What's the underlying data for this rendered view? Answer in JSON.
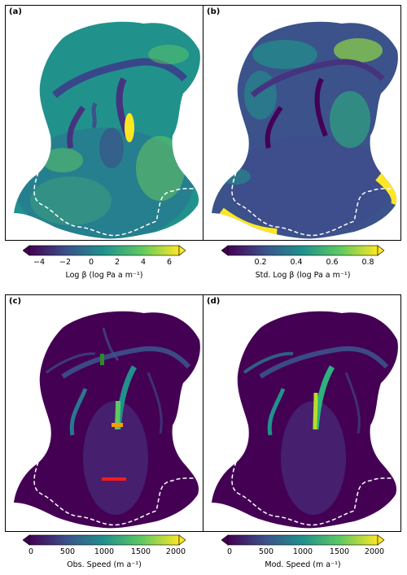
{
  "panels": [
    {
      "label": "(a)"
    },
    {
      "label": "(b)"
    },
    {
      "label": "(c)"
    },
    {
      "label": "(d)"
    }
  ],
  "colorbars": [
    {
      "label": "Log β (log Pa a m⁻¹)",
      "ticks": [
        "−4",
        "−2",
        "0",
        "2",
        "4",
        "6"
      ]
    },
    {
      "label": "Std. Log β (log Pa a m⁻¹)",
      "ticks": [
        "0.2",
        "0.4",
        "0.6",
        "0.8"
      ]
    },
    {
      "label": "Obs. Speed (m a⁻¹)",
      "ticks": [
        "0",
        "500",
        "1000",
        "1500",
        "2000"
      ]
    },
    {
      "label": "Mod. Speed (m a⁻¹)",
      "ticks": [
        "0",
        "500",
        "1000",
        "1500",
        "2000"
      ]
    }
  ],
  "colors": {
    "viridis_dark": "#440154",
    "viridis_blue": "#3b528b",
    "viridis_teal": "#21918c",
    "viridis_green": "#5ec962",
    "viridis_yellow": "#fde725",
    "marker_green": "#2e8b2e",
    "marker_orange": "#ff9900",
    "marker_red": "#ff1a1a"
  }
}
